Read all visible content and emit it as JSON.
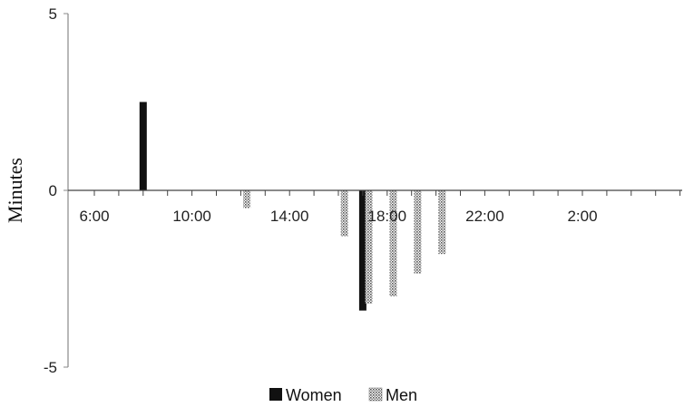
{
  "chart_data": {
    "type": "bar",
    "ylabel": "Minutes",
    "xlabel": "",
    "ylim": [
      -5,
      5
    ],
    "yticks": [
      "5",
      "0",
      "-5"
    ],
    "x_unit": "hour of day",
    "xlim": [
      5.5,
      30.5
    ],
    "xticks": [
      {
        "label": "6:00",
        "hour": 6
      },
      {
        "label": "10:00",
        "hour": 10
      },
      {
        "label": "14:00",
        "hour": 14
      },
      {
        "label": "18:00",
        "hour": 18
      },
      {
        "label": "22:00",
        "hour": 22
      },
      {
        "label": "2:00",
        "hour": 26
      }
    ],
    "series": [
      {
        "name": "Women",
        "color": "#111111",
        "pattern": "solid",
        "points": [
          {
            "hour": 8,
            "value": 2.5
          },
          {
            "hour": 17,
            "value": -3.4
          }
        ]
      },
      {
        "name": "Men",
        "color": "#7a7a7a",
        "pattern": "stippled",
        "points": [
          {
            "hour": 12.25,
            "value": -0.5
          },
          {
            "hour": 16.25,
            "value": -1.3
          },
          {
            "hour": 17.25,
            "value": -3.2
          },
          {
            "hour": 18.25,
            "value": -3.0
          },
          {
            "hour": 19.25,
            "value": -2.35
          },
          {
            "hour": 20.25,
            "value": -1.8
          }
        ]
      }
    ],
    "legend": {
      "position": "bottom",
      "items": [
        "Women",
        "Men"
      ]
    },
    "grid": false
  }
}
